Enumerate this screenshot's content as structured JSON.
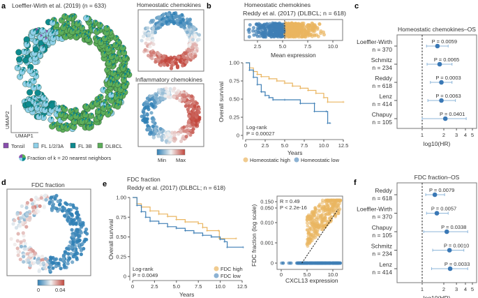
{
  "colors": {
    "high": "#eab560",
    "low": "#3f7fb5",
    "forest": "#3a78b5",
    "ci": "#8db6da",
    "tonsil": "#8a4fae",
    "fl123a": "#8fd0e8",
    "fl3b": "#0d8a8f",
    "dlbcl": "#5dae5a",
    "min": "#2f7fb5",
    "mid": "#f2f2f2",
    "max": "#c2463c"
  },
  "panel_labels": [
    "a",
    "b",
    "c",
    "d",
    "e",
    "f"
  ],
  "chart_data": [
    {
      "id": "a",
      "type": "scatter",
      "title": "Loeffler-Wirth et al. (2019) (n = 633)",
      "xlabel": "UMAP1",
      "ylabel": "UMAP2",
      "legend": [
        "Tonsil",
        "FL 1/2/3A",
        "FL 3B",
        "DLBCL"
      ],
      "legend_note": "Fraction of k = 20 nearest neighbors"
    },
    {
      "id": "a-right",
      "type": "scatter",
      "panels": [
        "Homeostatic chemokines",
        "Inflammatory chemokines"
      ],
      "colorbar": {
        "min_label": "Min",
        "max_label": "Max"
      }
    },
    {
      "id": "b-strip",
      "type": "scatter",
      "title_line1": "Homeostatic chemokines",
      "title_line2": "Reddy et al. (2017) (DLBCL; n = 618)",
      "xlabel": "Mean expression",
      "xlim": [
        1.5,
        10.5
      ],
      "xticks": [
        "2.5",
        "5.0",
        "7.5",
        "10.0"
      ],
      "threshold": 5.2
    },
    {
      "id": "b-km",
      "type": "line",
      "xlabel": "Years",
      "ylabel": "Overall survival",
      "xlim": [
        0,
        12.5
      ],
      "ylim": [
        0,
        1
      ],
      "xticks": [
        "0",
        "2.5",
        "5.0",
        "7.5",
        "10.0",
        "12.5"
      ],
      "yticks": [
        "0",
        "0.25",
        "0.50",
        "0.75",
        "1.00"
      ],
      "annotation": [
        "Log-rank",
        "P = 0.00027"
      ],
      "series": [
        {
          "name": "Homeostatic high",
          "color_key": "high",
          "points": [
            [
              0,
              1
            ],
            [
              0.5,
              0.93
            ],
            [
              1,
              0.88
            ],
            [
              1.5,
              0.84
            ],
            [
              2,
              0.81
            ],
            [
              3,
              0.78
            ],
            [
              4,
              0.75
            ],
            [
              5,
              0.72
            ],
            [
              6,
              0.68
            ],
            [
              7,
              0.65
            ],
            [
              8,
              0.62
            ],
            [
              9,
              0.58
            ],
            [
              10,
              0.52
            ],
            [
              10.5,
              0.46
            ],
            [
              12.5,
              0.46
            ]
          ]
        },
        {
          "name": "Homeostatic low",
          "color_key": "low",
          "points": [
            [
              0,
              1
            ],
            [
              0.5,
              0.9
            ],
            [
              1,
              0.8
            ],
            [
              1.5,
              0.7
            ],
            [
              2,
              0.6
            ],
            [
              2.5,
              0.55
            ],
            [
              3,
              0.52
            ],
            [
              3.5,
              0.49
            ],
            [
              5,
              0.49
            ],
            [
              7,
              0.44
            ],
            [
              8.8,
              0.44
            ],
            [
              8.8,
              0.33
            ],
            [
              10.3,
              0.33
            ],
            [
              10.5,
              0.17
            ],
            [
              10.8,
              0.17
            ]
          ]
        }
      ]
    },
    {
      "id": "c",
      "type": "forest",
      "title": "Homeostatic chemokines–OS",
      "xlabel": "log10(HR)",
      "xticks": [
        1,
        2,
        3,
        4,
        5
      ],
      "rows": [
        {
          "name": "Loeffler-Wirth",
          "n": "n = 370",
          "p": "P = 0.0059",
          "hr": 1.63,
          "lo": 1.15,
          "hi": 2.3
        },
        {
          "name": "Schmitz",
          "n": "n = 234",
          "p": "P = 0.0065",
          "hr": 1.75,
          "lo": 1.17,
          "hi": 2.6
        },
        {
          "name": "Reddy",
          "n": "n = 618",
          "p": "P = 0.0003",
          "hr": 1.85,
          "lo": 1.3,
          "hi": 2.6
        },
        {
          "name": "Lenz",
          "n": "n = 414",
          "p": "P = 0.0063",
          "hr": 1.85,
          "lo": 1.2,
          "hi": 2.9
        },
        {
          "name": "Chapuy",
          "n": "n = 105",
          "p": "P = 0.0401",
          "hr": 2.1,
          "lo": 1.0,
          "hi": 4.1
        }
      ]
    },
    {
      "id": "d",
      "type": "scatter",
      "title": "FDC fraction",
      "colorbar": {
        "min_label": "0",
        "max_label": "0.04"
      }
    },
    {
      "id": "e-km",
      "type": "line",
      "title_line1": "FDC fraction",
      "title_line2": "Reddy et al. (2017) (DLBCL; n = 618)",
      "xlabel": "Years",
      "ylabel": "Overall survival",
      "xlim": [
        0,
        12.5
      ],
      "ylim": [
        0,
        1
      ],
      "xticks": [
        "0",
        "2.5",
        "5.0",
        "7.5",
        "10.0",
        "12.5"
      ],
      "yticks": [
        "0",
        "0.25",
        "0.50",
        "0.75",
        "1.00"
      ],
      "annotation": [
        "Log-rank",
        "P = 0.0049"
      ],
      "series": [
        {
          "name": "FDC high",
          "color_key": "high",
          "points": [
            [
              0,
              1
            ],
            [
              0.5,
              0.92
            ],
            [
              1,
              0.88
            ],
            [
              2,
              0.83
            ],
            [
              3,
              0.79
            ],
            [
              4,
              0.76
            ],
            [
              5,
              0.72
            ],
            [
              6,
              0.69
            ],
            [
              7.5,
              0.67
            ],
            [
              8,
              0.62
            ],
            [
              8.5,
              0.58
            ],
            [
              9.8,
              0.58
            ],
            [
              9.9,
              0.48
            ],
            [
              11.8,
              0.48
            ]
          ]
        },
        {
          "name": "FDC low",
          "color_key": "low",
          "points": [
            [
              0,
              1
            ],
            [
              0.5,
              0.9
            ],
            [
              1,
              0.82
            ],
            [
              1.5,
              0.75
            ],
            [
              2,
              0.7
            ],
            [
              3,
              0.67
            ],
            [
              4,
              0.63
            ],
            [
              5,
              0.61
            ],
            [
              6,
              0.58
            ],
            [
              7,
              0.55
            ],
            [
              8,
              0.52
            ],
            [
              9,
              0.5
            ],
            [
              10,
              0.47
            ],
            [
              10.5,
              0.44
            ],
            [
              10.8,
              0.37
            ],
            [
              12.6,
              0.37
            ]
          ]
        }
      ]
    },
    {
      "id": "e-scatter",
      "type": "scatter",
      "xlabel": "CXCL13 expression",
      "ylabel": "FDC fraction (log scale)",
      "xticks": [
        "0",
        "5.0",
        "10.0"
      ],
      "yticks": [
        "0",
        "0.001",
        "0.010",
        "0.050",
        "0.150"
      ],
      "annotation": [
        "R = 0.49",
        "P < 2.2e-16"
      ]
    },
    {
      "id": "f",
      "type": "forest",
      "title": "FDC fraction–OS",
      "xlabel": "log10(HR)",
      "xticks": [
        1,
        2,
        3,
        4,
        5
      ],
      "rows": [
        {
          "name": "Reddy",
          "n": "n = 618",
          "p": "P = 0.0079",
          "hr": 1.5,
          "lo": 1.12,
          "hi": 2.05
        },
        {
          "name": "Loeffler-Wirth",
          "n": "n = 370",
          "p": "P = 0.0057",
          "hr": 1.6,
          "lo": 1.15,
          "hi": 2.3
        },
        {
          "name": "Chapuy",
          "n": "n = 105",
          "p": "P = 0.0338",
          "hr": 2.2,
          "lo": 1.05,
          "hi": 4.3
        },
        {
          "name": "Schmitz",
          "n": "n = 234",
          "p": "P = 0.0010",
          "hr": 2.4,
          "lo": 1.4,
          "hi": 3.8
        },
        {
          "name": "Lenz",
          "n": "n = 414",
          "p": "P = 0.0033",
          "hr": 2.45,
          "lo": 1.35,
          "hi": 4.3
        }
      ]
    }
  ]
}
